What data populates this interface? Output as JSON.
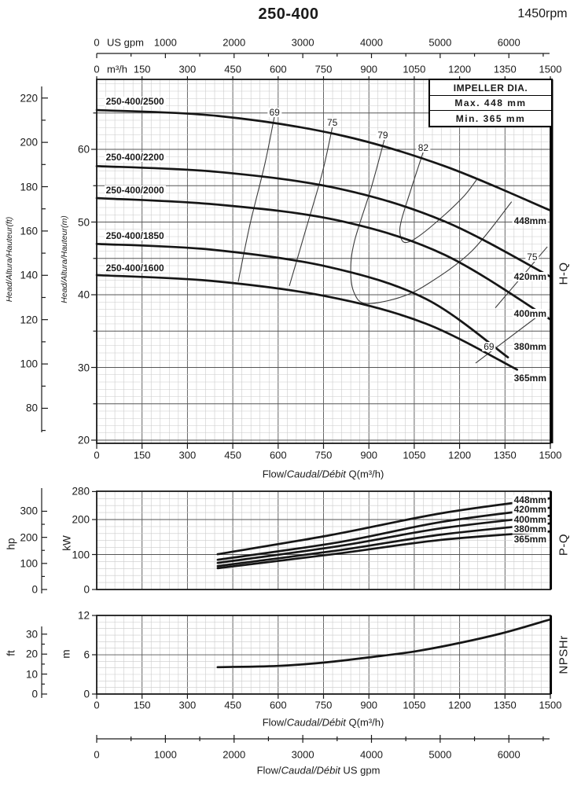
{
  "header": {
    "title": "250-400",
    "rpm": "1450rpm"
  },
  "impeller_box": {
    "title": "IMPELLER DIA.",
    "max": "Max. 448 mm",
    "min": "Min. 365 mm"
  },
  "labels": {
    "us_gpm_unit": "US gpm",
    "m3h_unit": "m³/h",
    "flow_pre": "Flow/",
    "flow_italic": "Caudal/Débit",
    "flow_post_m3h": " Q(m³/h)",
    "flow_post_gpm": "  US gpm",
    "head_ft": "Head/Altura/Hauteur(ft)",
    "head_m": "Head/Altura/Hauteur(m)",
    "hq": "H-Q",
    "pq": "P-Q",
    "npshr": "NPSHr",
    "kw": "kW",
    "hp": "hp",
    "m": "m",
    "ft": "ft"
  },
  "chart_data": [
    {
      "id": "hq",
      "type": "line",
      "name": "H-Q",
      "x": {
        "label": "Flow/Caudal/Débit Q(m³/h)",
        "min": 0,
        "max": 1500,
        "minor_step": 30,
        "ticks": [
          0,
          150,
          300,
          450,
          600,
          750,
          900,
          1050,
          1200,
          1350,
          1500
        ]
      },
      "x_gpm": {
        "label": "US gpm",
        "min": 0,
        "max": 6604,
        "minor_step": 500,
        "ticks": [
          0,
          1000,
          2000,
          3000,
          4000,
          5000,
          6000
        ]
      },
      "y_m": {
        "label": "Head/Altura/Hauteur(m)",
        "min": 20,
        "max": 70,
        "major_step": 5,
        "minor_step": 1,
        "ticks": [
          20,
          30,
          40,
          50,
          60
        ]
      },
      "y_ft": {
        "label": "Head/Altura/Hauteur(ft)",
        "ticks": [
          80,
          100,
          120,
          140,
          160,
          180,
          200,
          220
        ]
      },
      "series": [
        {
          "label": "250-400/2500",
          "dia": "448mm",
          "label_q": 25,
          "label_h": 66.6,
          "dia_h": 50.2,
          "points": [
            [
              0,
              65.4
            ],
            [
              400,
              64.6
            ],
            [
              800,
              62.0
            ],
            [
              1150,
              57.7
            ],
            [
              1500,
              51.6
            ]
          ]
        },
        {
          "label": "250-400/2200",
          "dia": "420mm",
          "label_q": 25,
          "label_h": 58.9,
          "dia_h": 42.5,
          "points": [
            [
              0,
              57.7
            ],
            [
              400,
              56.9
            ],
            [
              800,
              54.6
            ],
            [
              1150,
              50.1
            ],
            [
              1500,
              42.5
            ]
          ]
        },
        {
          "label": "250-400/2000",
          "dia": "400mm",
          "label_q": 25,
          "label_h": 54.4,
          "dia_h": 37.4,
          "points": [
            [
              0,
              53.3
            ],
            [
              400,
              52.4
            ],
            [
              800,
              50.2
            ],
            [
              1150,
              45.5
            ],
            [
              1500,
              36.6
            ]
          ]
        },
        {
          "label": "250-400/1850",
          "dia": "380mm",
          "label_q": 25,
          "label_h": 48.1,
          "dia_h": 32.9,
          "points": [
            [
              0,
              47.0
            ],
            [
              380,
              46.2
            ],
            [
              770,
              43.8
            ],
            [
              1090,
              39.4
            ],
            [
              1360,
              31.4
            ]
          ]
        },
        {
          "label": "250-400/1600",
          "dia": "365mm",
          "label_q": 25,
          "label_h": 43.7,
          "dia_h": 28.5,
          "points": [
            [
              0,
              42.7
            ],
            [
              380,
              41.9
            ],
            [
              770,
              39.7
            ],
            [
              1090,
              36.0
            ],
            [
              1390,
              29.7
            ]
          ]
        }
      ],
      "efficiency": [
        {
          "label": "69",
          "label_q": 588,
          "label_h": 65.1,
          "points": [
            [
              588,
              64.6
            ],
            [
              556,
              58.0
            ],
            [
              507,
              49.7
            ],
            [
              468,
              41.8
            ]
          ]
        },
        {
          "label": "75",
          "label_q": 779,
          "label_h": 63.7,
          "points": [
            [
              780,
              63.2
            ],
            [
              746,
              56.8
            ],
            [
              689,
              48.6
            ],
            [
              637,
              41.2
            ]
          ]
        },
        {
          "label": "79",
          "label_q": 946,
          "label_h": 61.9,
          "points": [
            [
              951,
              61.3
            ],
            [
              907,
              54.6
            ],
            [
              852,
              47.3
            ],
            [
              840,
              43.2
            ],
            [
              852,
              40.2
            ],
            [
              890,
              38.8
            ],
            [
              1000,
              39.6
            ],
            [
              1095,
              41.5
            ],
            [
              1240,
              46.0
            ],
            [
              1372,
              52.8
            ]
          ]
        },
        {
          "label": "82",
          "label_q": 1080,
          "label_h": 60.2,
          "points": [
            [
              1081,
              59.8
            ],
            [
              1040,
              54.6
            ],
            [
              1008,
              50.3
            ],
            [
              1003,
              48.4
            ],
            [
              1018,
              47.2
            ],
            [
              1060,
              47.9
            ],
            [
              1140,
              50.6
            ],
            [
              1215,
              53.6
            ],
            [
              1256,
              55.8
            ]
          ]
        },
        {
          "label": "69",
          "label_q": 1297,
          "label_h": 32.9,
          "points": [
            [
              1253,
              30.6
            ],
            [
              1473,
              37.5
            ]
          ]
        },
        {
          "label": "75",
          "label_q": 1440,
          "label_h": 45.2,
          "points": [
            [
              1318,
              38.2
            ],
            [
              1490,
              46.6
            ]
          ]
        }
      ]
    },
    {
      "id": "pq",
      "type": "line",
      "name": "P-Q",
      "x": {
        "label": "Flow/Caudal/Débit Q(m³/h)",
        "min": 0,
        "max": 1500,
        "minor_step": 30,
        "ticks": [
          0,
          150,
          300,
          450,
          600,
          750,
          900,
          1050,
          1200,
          1350,
          1500
        ]
      },
      "y_kw": {
        "label": "kW",
        "min": 0,
        "max": 280,
        "major_step": 100,
        "minor_step": 20,
        "ticks": [
          0,
          100,
          200,
          280
        ]
      },
      "y_hp": {
        "label": "hp",
        "ticks": [
          0,
          100,
          200,
          300
        ]
      },
      "series": [
        {
          "dia": "448mm",
          "label_kw": 256,
          "points": [
            [
              400,
              101
            ],
            [
              770,
              155
            ],
            [
              1140,
              218
            ],
            [
              1500,
              261
            ]
          ]
        },
        {
          "dia": "420mm",
          "label_kw": 229,
          "points": [
            [
              400,
              85
            ],
            [
              800,
              135
            ],
            [
              1140,
              193
            ],
            [
              1500,
              234
            ]
          ]
        },
        {
          "dia": "400mm",
          "label_kw": 200,
          "points": [
            [
              400,
              76
            ],
            [
              800,
              124
            ],
            [
              1140,
              175
            ],
            [
              1500,
              211
            ]
          ]
        },
        {
          "dia": "380mm",
          "label_kw": 173,
          "points": [
            [
              400,
              67
            ],
            [
              800,
              112
            ],
            [
              1140,
              157
            ],
            [
              1500,
              189
            ]
          ]
        },
        {
          "dia": "365mm",
          "label_kw": 144,
          "points": [
            [
              400,
              61
            ],
            [
              800,
              103
            ],
            [
              1140,
              142
            ],
            [
              1500,
              166
            ]
          ]
        }
      ]
    },
    {
      "id": "npshr",
      "type": "line",
      "name": "NPSHr",
      "x": {
        "label": "Flow/Caudal/Débit Q(m³/h)",
        "min": 0,
        "max": 1500,
        "minor_step": 30,
        "ticks": [
          0,
          150,
          300,
          450,
          600,
          750,
          900,
          1050,
          1200,
          1350,
          1500
        ]
      },
      "x_gpm_bottom": {
        "label": "Flow/Caudal/Débit  US gpm",
        "min": 0,
        "max": 6604,
        "minor_step": 500,
        "ticks": [
          0,
          1000,
          2000,
          3000,
          4000,
          5000,
          6000
        ]
      },
      "y_m": {
        "label": "m",
        "min": 0,
        "max": 12,
        "major_step": 6,
        "minor_step": 1,
        "ticks": [
          0,
          6,
          12
        ]
      },
      "y_ft": {
        "label": "ft",
        "ticks": [
          0,
          10,
          20,
          30
        ]
      },
      "series": [
        {
          "name": "NPSHr",
          "points": [
            [
              400,
              4.1
            ],
            [
              600,
              4.3
            ],
            [
              750,
              4.8
            ],
            [
              900,
              5.6
            ],
            [
              1050,
              6.5
            ],
            [
              1200,
              7.8
            ],
            [
              1350,
              9.4
            ],
            [
              1500,
              11.4
            ]
          ]
        }
      ]
    }
  ]
}
